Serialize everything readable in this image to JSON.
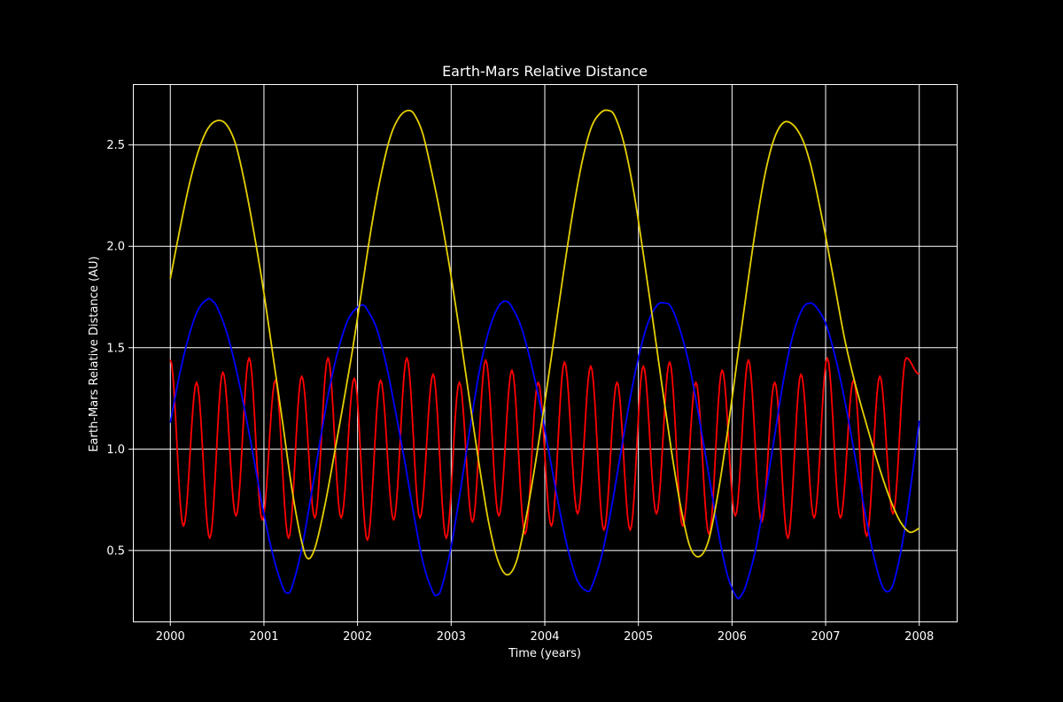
{
  "chart_data": {
    "type": "line",
    "title": "Earth-Mars Relative Distance",
    "xlabel": "Time (years)",
    "ylabel": "Earth-Mars Relative Distance (AU)",
    "xlim": [
      1999.6,
      2008.4
    ],
    "ylim": [
      0.15,
      2.8
    ],
    "xticks": [
      2000,
      2001,
      2002,
      2003,
      2004,
      2005,
      2006,
      2007,
      2008
    ],
    "xtick_labels": [
      "2000",
      "2001",
      "2002",
      "2003",
      "2004",
      "2005",
      "2006",
      "2007",
      "2008"
    ],
    "yticks": [
      0.5,
      1.0,
      1.5,
      2.0,
      2.5
    ],
    "ytick_labels": [
      "0.5",
      "1.0",
      "1.5",
      "2.0",
      "2.5"
    ],
    "grid": true,
    "background": "#000000",
    "series": [
      {
        "color": "#e6d000",
        "x": [
          2000.0,
          2000.1,
          2000.2,
          2000.3,
          2000.4,
          2000.5,
          2000.6,
          2000.7,
          2000.8,
          2000.9,
          2001.0,
          2001.1,
          2001.2,
          2001.3,
          2001.4,
          2001.47,
          2001.55,
          2001.65,
          2001.75,
          2001.85,
          2001.95,
          2002.05,
          2002.15,
          2002.25,
          2002.35,
          2002.45,
          2002.55,
          2002.62,
          2002.7,
          2002.8,
          2002.9,
          2003.0,
          2003.1,
          2003.2,
          2003.3,
          2003.4,
          2003.5,
          2003.6,
          2003.7,
          2003.8,
          2003.9,
          2004.0,
          2004.1,
          2004.2,
          2004.3,
          2004.4,
          2004.5,
          2004.6,
          2004.68,
          2004.75,
          2004.85,
          2004.95,
          2005.05,
          2005.15,
          2005.25,
          2005.35,
          2005.45,
          2005.55,
          2005.65,
          2005.75,
          2005.85,
          2005.95,
          2006.05,
          2006.15,
          2006.25,
          2006.35,
          2006.45,
          2006.55,
          2006.65,
          2006.75,
          2006.83,
          2006.9,
          2007.0,
          2007.1,
          2007.2,
          2007.3,
          2007.4,
          2007.5,
          2007.6,
          2007.7,
          2007.8,
          2007.9,
          2008.0
        ],
        "y": [
          1.84,
          2.08,
          2.3,
          2.47,
          2.58,
          2.62,
          2.6,
          2.5,
          2.3,
          2.05,
          1.77,
          1.45,
          1.13,
          0.8,
          0.55,
          0.46,
          0.52,
          0.72,
          0.97,
          1.23,
          1.5,
          1.8,
          2.1,
          2.35,
          2.54,
          2.64,
          2.67,
          2.64,
          2.55,
          2.35,
          2.12,
          1.85,
          1.55,
          1.23,
          0.92,
          0.64,
          0.45,
          0.38,
          0.45,
          0.66,
          0.93,
          1.23,
          1.55,
          1.87,
          2.17,
          2.42,
          2.59,
          2.66,
          2.67,
          2.64,
          2.5,
          2.27,
          1.97,
          1.65,
          1.32,
          1.0,
          0.72,
          0.52,
          0.47,
          0.55,
          0.78,
          1.08,
          1.42,
          1.76,
          2.08,
          2.35,
          2.53,
          2.61,
          2.6,
          2.53,
          2.42,
          2.28,
          2.05,
          1.8,
          1.55,
          1.35,
          1.18,
          1.02,
          0.87,
          0.74,
          0.64,
          0.59,
          0.61
        ]
      },
      {
        "color": "#0000ff",
        "x": [
          2000.0,
          2000.1,
          2000.2,
          2000.3,
          2000.4,
          2000.45,
          2000.5,
          2000.6,
          2000.7,
          2000.8,
          2000.9,
          2001.0,
          2001.1,
          2001.2,
          2001.25,
          2001.3,
          2001.4,
          2001.5,
          2001.6,
          2001.7,
          2001.8,
          2001.9,
          2002.0,
          2002.06,
          2002.1,
          2002.2,
          2002.3,
          2002.4,
          2002.5,
          2002.6,
          2002.7,
          2002.8,
          2002.85,
          2002.9,
          2003.0,
          2003.1,
          2003.2,
          2003.3,
          2003.4,
          2003.5,
          2003.58,
          2003.65,
          2003.75,
          2003.85,
          2003.95,
          2004.05,
          2004.15,
          2004.25,
          2004.35,
          2004.45,
          2004.5,
          2004.6,
          2004.7,
          2004.8,
          2004.9,
          2005.0,
          2005.1,
          2005.2,
          2005.28,
          2005.35,
          2005.45,
          2005.55,
          2005.65,
          2005.75,
          2005.85,
          2005.95,
          2006.05,
          2006.1,
          2006.15,
          2006.25,
          2006.35,
          2006.45,
          2006.55,
          2006.65,
          2006.75,
          2006.83,
          2006.9,
          2007.0,
          2007.1,
          2007.2,
          2007.3,
          2007.4,
          2007.5,
          2007.6,
          2007.68,
          2007.75,
          2007.85,
          2007.95,
          2008.0
        ],
        "y": [
          1.13,
          1.37,
          1.56,
          1.69,
          1.74,
          1.73,
          1.7,
          1.58,
          1.4,
          1.18,
          0.93,
          0.68,
          0.47,
          0.32,
          0.29,
          0.32,
          0.5,
          0.76,
          1.04,
          1.3,
          1.5,
          1.64,
          1.7,
          1.71,
          1.69,
          1.6,
          1.43,
          1.2,
          0.95,
          0.68,
          0.44,
          0.3,
          0.28,
          0.32,
          0.52,
          0.8,
          1.1,
          1.38,
          1.58,
          1.7,
          1.73,
          1.7,
          1.6,
          1.43,
          1.22,
          0.97,
          0.72,
          0.5,
          0.35,
          0.3,
          0.32,
          0.46,
          0.68,
          0.95,
          1.22,
          1.45,
          1.62,
          1.71,
          1.72,
          1.7,
          1.58,
          1.4,
          1.15,
          0.88,
          0.6,
          0.38,
          0.27,
          0.28,
          0.33,
          0.5,
          0.76,
          1.05,
          1.34,
          1.56,
          1.69,
          1.72,
          1.7,
          1.62,
          1.46,
          1.25,
          1.0,
          0.74,
          0.5,
          0.33,
          0.3,
          0.38,
          0.62,
          0.96,
          1.14
        ]
      },
      {
        "color": "#ff0000",
        "x_start": 2000.0,
        "x_end": 2008.0,
        "extrema": [
          1.44,
          0.62,
          1.33,
          0.56,
          1.38,
          0.67,
          1.45,
          0.65,
          1.34,
          0.56,
          1.36,
          0.66,
          1.45,
          0.66,
          1.35,
          0.55,
          1.34,
          0.65,
          1.45,
          0.66,
          1.37,
          0.56,
          1.33,
          0.64,
          1.44,
          0.67,
          1.39,
          0.58,
          1.33,
          0.62,
          1.43,
          0.68,
          1.41,
          0.6,
          1.33,
          0.6,
          1.41,
          0.68,
          1.43,
          0.62,
          1.33,
          0.58,
          1.39,
          0.67,
          1.44,
          0.64,
          1.33,
          0.56,
          1.37,
          0.66,
          1.45,
          0.66,
          1.34,
          0.57,
          1.36,
          0.68,
          1.45,
          1.37
        ]
      }
    ]
  }
}
